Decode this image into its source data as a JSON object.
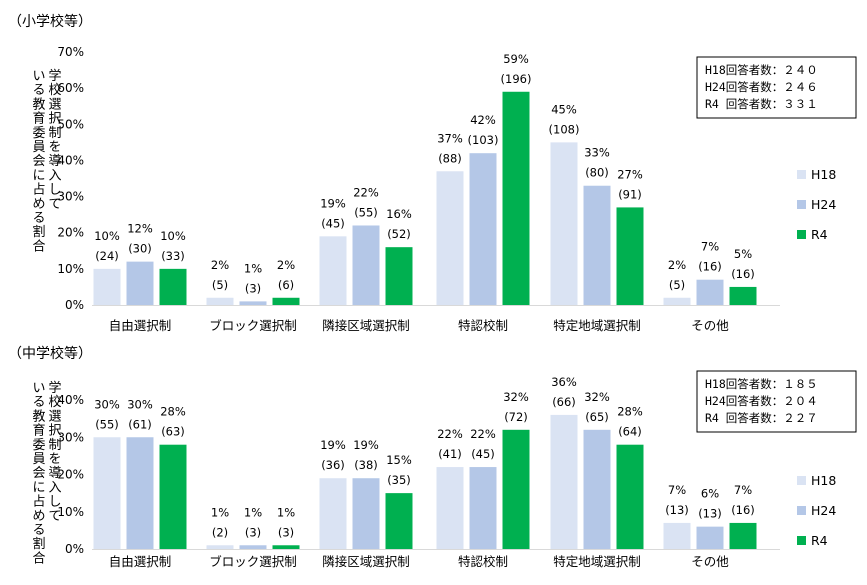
{
  "colors": {
    "H18": "#dae3f3",
    "H24": "#b4c7e7",
    "R4": "#00b050"
  },
  "legend": [
    "H18",
    "H24",
    "R4"
  ],
  "chart_data": [
    {
      "type": "bar",
      "title": "（小学校等）",
      "ylabel": "学校選択制を導入している教育委員会に占める割合",
      "ylim": [
        0,
        70
      ],
      "yticks": [
        "0%",
        "10%",
        "20%",
        "30%",
        "40%",
        "50%",
        "60%",
        "70%"
      ],
      "categories": [
        "自由選択制",
        "ブロック選択制",
        "隣接区域選択制",
        "特認校制",
        "特定地域選択制",
        "その他"
      ],
      "series": [
        {
          "name": "H18",
          "values": [
            10,
            2,
            19,
            37,
            45,
            2
          ],
          "labels": [
            "10%\n(24)",
            "2%\n(5)",
            "19%\n(45)",
            "37%\n(88)",
            "45%\n(108)",
            "2%\n(5)"
          ]
        },
        {
          "name": "H24",
          "values": [
            12,
            1,
            22,
            42,
            33,
            7
          ],
          "labels": [
            "12%\n(30)",
            "1%\n(3)",
            "22%\n(55)",
            "42%\n(103)",
            "33%\n(80)",
            "7%\n(16)"
          ]
        },
        {
          "name": "R4",
          "values": [
            10,
            2,
            16,
            59,
            27,
            5
          ],
          "labels": [
            "10%\n(33)",
            "2%\n(6)",
            "16%\n(52)",
            "59%\n(196)",
            "27%\n(91)",
            "5%\n(16)"
          ]
        }
      ],
      "respondents": [
        "H18回答者数：２４０",
        "H24回答者数：２４６",
        "R4 回答者数：３３１"
      ]
    },
    {
      "type": "bar",
      "title": "（中学校等）",
      "ylabel": "学校選択制を導入している教育委員会に占める割合",
      "ylim": [
        0,
        40
      ],
      "yticks": [
        "0%",
        "10%",
        "20%",
        "30%",
        "40%"
      ],
      "categories": [
        "自由選択制",
        "ブロック選択制",
        "隣接区域選択制",
        "特認校制",
        "特定地域選択制",
        "その他"
      ],
      "series": [
        {
          "name": "H18",
          "values": [
            30,
            1,
            19,
            22,
            36,
            7
          ],
          "labels": [
            "30%\n(55)",
            "1%\n(2)",
            "19%\n(36)",
            "22%\n(41)",
            "36%\n(66)",
            "7%\n(13)"
          ]
        },
        {
          "name": "H24",
          "values": [
            30,
            1,
            19,
            22,
            32,
            6
          ],
          "labels": [
            "30%\n(61)",
            "1%\n(3)",
            "19%\n(38)",
            "22%\n(45)",
            "32%\n(65)",
            "6%\n(13)"
          ]
        },
        {
          "name": "R4",
          "values": [
            28,
            1,
            15,
            32,
            28,
            7
          ],
          "labels": [
            "28%\n(63)",
            "1%\n(3)",
            "15%\n(35)",
            "32%\n(72)",
            "28%\n(64)",
            "7%\n(16)"
          ]
        }
      ],
      "respondents": [
        "H18回答者数：１８５",
        "H24回答者数：２０４",
        "R4 回答者数：２２７"
      ]
    }
  ]
}
